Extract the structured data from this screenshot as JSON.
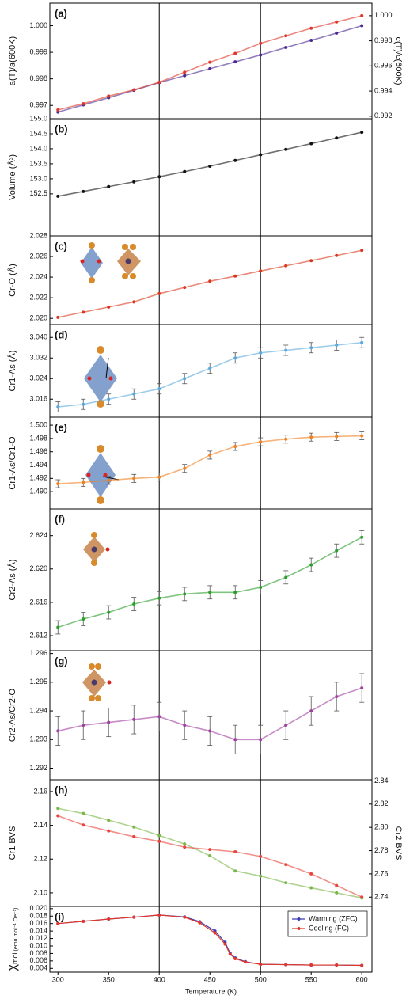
{
  "chart_data": [
    {
      "type": "scatter",
      "panel_label": "(a)",
      "y_label": "a(T)/a(600K)",
      "y2_label": "c(T)/c(600K)",
      "x": [
        300,
        325,
        350,
        375,
        400,
        425,
        450,
        475,
        500,
        525,
        550,
        575,
        600
      ],
      "xlim": [
        292,
        610
      ],
      "vlines": [
        400,
        500
      ],
      "ylim": [
        0.9965,
        1.00085
      ],
      "yticks": [
        0.997,
        0.998,
        0.999,
        {
          "value": 1,
          "label": "1.000"
        }
      ],
      "y2lim": [
        0.9918,
        1.001
      ],
      "y2ticks": [
        0.992,
        0.994,
        0.996,
        0.998,
        {
          "value": 1,
          "label": "1.000"
        }
      ],
      "series": [
        {
          "color": "#4b2a8f",
          "values": [
            0.99675,
            0.99702,
            0.99729,
            0.99757,
            0.99786,
            0.99812,
            0.99838,
            0.99864,
            0.9989,
            0.99918,
            0.99945,
            0.99972,
            1.0
          ]
        },
        {
          "color": "#e0372a",
          "axis": "y2",
          "values": [
            0.9925,
            0.993,
            0.9936,
            0.9941,
            0.9947,
            0.9955,
            0.9963,
            0.997,
            0.9978,
            0.9984,
            0.999,
            0.9995,
            1.0
          ]
        }
      ]
    },
    {
      "type": "scatter",
      "panel_label": "(b)",
      "y_label": "Volume (Å³)",
      "x": [
        300,
        325,
        350,
        375,
        400,
        425,
        450,
        475,
        500,
        525,
        550,
        575,
        600
      ],
      "xlim": [
        292,
        610
      ],
      "vlines": [
        400,
        500
      ],
      "ylim": [
        151.1,
        155.0
      ],
      "yticks": [
        152.5,
        {
          "value": 153,
          "label": "153.0"
        },
        153.5,
        {
          "value": 154,
          "label": "154.0"
        },
        154.5,
        {
          "value": 155,
          "label": "155.0"
        }
      ],
      "series": [
        {
          "color": "#111111",
          "values": [
            152.42,
            152.58,
            152.74,
            152.9,
            153.07,
            153.24,
            153.42,
            153.61,
            153.8,
            153.98,
            154.17,
            154.36,
            154.55
          ]
        }
      ]
    },
    {
      "type": "scatter",
      "panel_label": "(c)",
      "y_label": "Cr-O (Å)",
      "x": [
        300,
        325,
        350,
        375,
        400,
        425,
        450,
        475,
        500,
        525,
        550,
        575,
        600
      ],
      "xlim": [
        292,
        610
      ],
      "vlines": [
        400,
        500
      ],
      "ylim": [
        2.0194,
        2.028
      ],
      "yticks": [
        {
          "value": 2.02,
          "label": "2.020"
        },
        2.022,
        2.024,
        2.026,
        2.028
      ],
      "series": [
        {
          "color": "#d9381e",
          "values": [
            2.0201,
            2.0206,
            2.0211,
            2.0216,
            2.0224,
            2.023,
            2.0236,
            2.0241,
            2.0246,
            2.0251,
            2.0256,
            2.0261,
            2.0266
          ]
        }
      ]
    },
    {
      "type": "scatter",
      "panel_label": "(d)",
      "y_label": "Cr1-As (Å)",
      "x": [
        300,
        325,
        350,
        375,
        400,
        425,
        450,
        475,
        500,
        525,
        550,
        575,
        600
      ],
      "xlim": [
        292,
        610
      ],
      "vlines": [
        400,
        500
      ],
      "ylim": [
        3.009,
        3.045
      ],
      "yticks": [
        3.016,
        3.024,
        3.032,
        {
          "value": 3.04,
          "label": "3.040"
        }
      ],
      "series": [
        {
          "color": "#5aa9dc",
          "values": [
            3.013,
            3.014,
            3.016,
            3.018,
            3.02,
            3.024,
            3.028,
            3.032,
            3.034,
            3.035,
            3.036,
            3.037,
            3.038
          ],
          "errors": [
            0.002,
            0.002,
            0.002,
            0.002,
            0.002,
            0.002,
            0.002,
            0.002,
            0.002,
            0.002,
            0.002,
            0.002,
            0.002
          ]
        }
      ]
    },
    {
      "type": "scatter",
      "panel_label": "(e)",
      "y_label": "Cr1-As/Cr1-O",
      "x": [
        300,
        325,
        350,
        375,
        400,
        425,
        450,
        475,
        500,
        525,
        550,
        575,
        600
      ],
      "xlim": [
        292,
        610
      ],
      "vlines": [
        400,
        500
      ],
      "ylim": [
        1.4874,
        1.5012
      ],
      "yticks": [
        {
          "value": 1.49,
          "label": "1.490"
        },
        1.492,
        1.494,
        1.496,
        1.498,
        {
          "value": 1.5,
          "label": "1.500"
        }
      ],
      "series": [
        {
          "color": "#f07f1e",
          "values": [
            1.4912,
            1.4914,
            1.4917,
            1.492,
            1.4922,
            1.4935,
            1.4955,
            1.4968,
            1.4975,
            1.4979,
            1.4982,
            1.4983,
            1.4984
          ],
          "errors": [
            0.0006,
            0.0006,
            0.0006,
            0.0006,
            0.0006,
            0.0006,
            0.0006,
            0.0006,
            0.0006,
            0.0006,
            0.0006,
            0.0006,
            0.0006
          ]
        }
      ]
    },
    {
      "type": "scatter",
      "panel_label": "(f)",
      "y_label": "Cr2-As (Å)",
      "x": [
        300,
        325,
        350,
        375,
        400,
        425,
        450,
        475,
        500,
        525,
        550,
        575,
        600
      ],
      "xlim": [
        292,
        610
      ],
      "vlines": [
        400,
        500
      ],
      "ylim": [
        2.6102,
        2.6272
      ],
      "yticks": [
        2.612,
        2.616,
        {
          "value": 2.62,
          "label": "2.620"
        },
        2.624
      ],
      "series": [
        {
          "color": "#2a9d2a",
          "values": [
            2.613,
            2.614,
            2.6148,
            2.6158,
            2.6165,
            2.617,
            2.6172,
            2.6172,
            2.6178,
            2.619,
            2.6205,
            2.6222,
            2.6238
          ],
          "errors": [
            0.0008,
            0.0008,
            0.0008,
            0.0008,
            0.0008,
            0.0008,
            0.0008,
            0.0008,
            0.0008,
            0.0008,
            0.0008,
            0.0008,
            0.0008
          ]
        }
      ]
    },
    {
      "type": "scatter",
      "panel_label": "(g)",
      "y_label": "Cr2-As/Cr2-O",
      "x": [
        300,
        325,
        350,
        375,
        400,
        425,
        450,
        475,
        500,
        525,
        550,
        575,
        600
      ],
      "xlim": [
        292,
        610
      ],
      "vlines": [
        400,
        500
      ],
      "ylim": [
        1.2916,
        1.2961
      ],
      "yticks": [
        1.292,
        1.293,
        1.294,
        1.295,
        1.296
      ],
      "series": [
        {
          "color": "#a040a0",
          "values": [
            1.2933,
            1.2935,
            1.2936,
            1.2937,
            1.2938,
            1.2935,
            1.2933,
            1.293,
            1.293,
            1.2935,
            1.294,
            1.2945,
            1.2948
          ],
          "errors": [
            0.0005,
            0.0005,
            0.0005,
            0.0005,
            0.0005,
            0.0005,
            0.0005,
            0.0005,
            0.0005,
            0.0005,
            0.0005,
            0.0005,
            0.0005
          ]
        }
      ]
    },
    {
      "type": "scatter",
      "panel_label": "(h)",
      "y_label": "Cr1 BVS",
      "y2_label": "Cr2 BVS",
      "x": [
        300,
        325,
        350,
        375,
        400,
        425,
        450,
        475,
        500,
        525,
        550,
        575,
        600
      ],
      "xlim": [
        292,
        610
      ],
      "vlines": [
        400,
        500
      ],
      "ylim": [
        2.092,
        2.167
      ],
      "yticks": [
        {
          "value": 2.1,
          "label": "2.10"
        },
        2.12,
        2.14,
        2.16
      ],
      "y2lim": [
        2.732,
        2.841
      ],
      "y2ticks": [
        2.74,
        2.76,
        2.78,
        {
          "value": 2.8,
          "label": "2.80"
        },
        2.82,
        2.84
      ],
      "series": [
        {
          "color": "#7ab648",
          "values": [
            2.15,
            2.147,
            2.143,
            2.139,
            2.134,
            2.129,
            2.122,
            2.113,
            2.11,
            2.106,
            2.103,
            2.1,
            2.097
          ]
        },
        {
          "color": "#e8453c",
          "axis": "y2",
          "values": [
            2.81,
            2.802,
            2.797,
            2.792,
            2.788,
            2.783,
            2.781,
            2.779,
            2.775,
            2.768,
            2.76,
            2.75,
            2.74
          ]
        }
      ]
    },
    {
      "type": "line",
      "panel_label": "(i)",
      "y_label": "χ",
      "y_label_sub": "mol",
      "y_label_unit": "(emu mol⁻¹ Oe⁻¹)",
      "x": [
        300,
        325,
        350,
        375,
        400,
        425,
        440,
        455,
        465,
        470,
        475,
        485,
        500,
        525,
        550,
        575,
        600
      ],
      "xlim": [
        292,
        610
      ],
      "vlines": [
        400,
        500
      ],
      "xticks": [
        300,
        350,
        400,
        450,
        500,
        550,
        600
      ],
      "x_label": "Temperature (K)",
      "ylim": [
        0.003,
        0.0206
      ],
      "yticks": [
        0.004,
        0.006,
        0.008,
        {
          "value": 0.01,
          "label": "0.010"
        },
        0.012,
        0.014,
        0.016,
        0.018,
        {
          "value": 0.02,
          "label": "0.020"
        }
      ],
      "legend": "upper right",
      "series": [
        {
          "name": "Warming (ZFC)",
          "color": "#3b3bb5",
          "values": [
            0.016,
            0.0166,
            0.0172,
            0.0177,
            0.0183,
            0.0178,
            0.0165,
            0.014,
            0.011,
            0.008,
            0.0068,
            0.0058,
            0.0051,
            0.005,
            0.0049,
            0.0049,
            0.0048
          ]
        },
        {
          "name": "Cooling (FC)",
          "color": "#e0372a",
          "values": [
            0.016,
            0.0166,
            0.0172,
            0.0177,
            0.0183,
            0.0177,
            0.0162,
            0.0135,
            0.0105,
            0.0078,
            0.0066,
            0.0057,
            0.0051,
            0.005,
            0.0049,
            0.0049,
            0.0048
          ]
        }
      ]
    }
  ]
}
